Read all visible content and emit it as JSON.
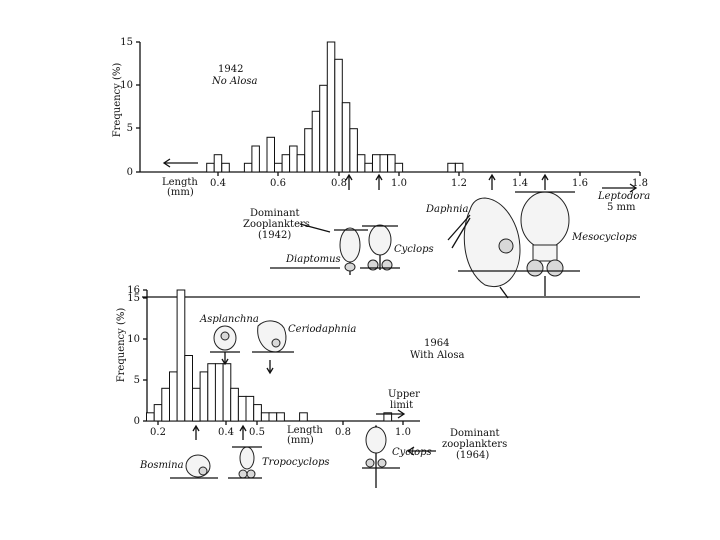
{
  "chart_data": [
    {
      "type": "bar",
      "year": "1942",
      "condition": "No Alosa",
      "ylabel": "Frequency (%)",
      "xlim": [
        0.1,
        1.75
      ],
      "ylim": [
        0,
        15
      ],
      "yticks": [
        "0",
        "5",
        "10",
        "15"
      ],
      "xticks": [
        "0.4",
        "0.6",
        "0.8",
        "1.0",
        "1.2",
        "1.4",
        "1.6",
        "1.8"
      ],
      "length_label": "Length",
      "length_unit": "(mm)",
      "leptodora_label": "Leptodora",
      "leptodora_size": "5 mm",
      "dominant_label": [
        "Dominant",
        "Zooplankters",
        "(1942)"
      ],
      "bin_width": 0.025,
      "bins": [
        {
          "x": 0.375,
          "y": 1
        },
        {
          "x": 0.4,
          "y": 2
        },
        {
          "x": 0.425,
          "y": 1
        },
        {
          "x": 0.5,
          "y": 1
        },
        {
          "x": 0.525,
          "y": 3
        },
        {
          "x": 0.575,
          "y": 4
        },
        {
          "x": 0.6,
          "y": 1
        },
        {
          "x": 0.625,
          "y": 2
        },
        {
          "x": 0.65,
          "y": 3
        },
        {
          "x": 0.675,
          "y": 2
        },
        {
          "x": 0.7,
          "y": 5
        },
        {
          "x": 0.725,
          "y": 7
        },
        {
          "x": 0.75,
          "y": 10
        },
        {
          "x": 0.775,
          "y": 15
        },
        {
          "x": 0.8,
          "y": 13
        },
        {
          "x": 0.825,
          "y": 8
        },
        {
          "x": 0.85,
          "y": 5
        },
        {
          "x": 0.875,
          "y": 2
        },
        {
          "x": 0.9,
          "y": 1
        },
        {
          "x": 0.925,
          "y": 2
        },
        {
          "x": 0.95,
          "y": 2
        },
        {
          "x": 0.975,
          "y": 2
        },
        {
          "x": 1.0,
          "y": 1
        },
        {
          "x": 1.175,
          "y": 1
        },
        {
          "x": 1.2,
          "y": 1
        }
      ],
      "organisms": [
        "Diaptomus",
        "Cyclops",
        "Daphnia",
        "Mesocyclops"
      ]
    },
    {
      "type": "bar",
      "year": "1964",
      "condition": "With Alosa",
      "ylabel": "Frequency (%)",
      "xlim": [
        0.1,
        1.0
      ],
      "ylim": [
        0,
        16
      ],
      "yticks": [
        "0",
        "5",
        "10",
        "15",
        "16"
      ],
      "xticks": [
        "0.2",
        "0.4",
        "0.5",
        "0.8",
        "1.0"
      ],
      "length_label": "Length",
      "length_unit": "(mm)",
      "upper_limit_label": [
        "Upper",
        "limit"
      ],
      "dominant_label": [
        "Dominant",
        "zooplankters",
        "(1964)"
      ],
      "bin_width": 0.025,
      "bins": [
        {
          "x": 0.175,
          "y": 1
        },
        {
          "x": 0.2,
          "y": 2
        },
        {
          "x": 0.225,
          "y": 4
        },
        {
          "x": 0.25,
          "y": 6
        },
        {
          "x": 0.275,
          "y": 16
        },
        {
          "x": 0.3,
          "y": 8
        },
        {
          "x": 0.325,
          "y": 4
        },
        {
          "x": 0.35,
          "y": 6
        },
        {
          "x": 0.375,
          "y": 7
        },
        {
          "x": 0.4,
          "y": 7
        },
        {
          "x": 0.425,
          "y": 7
        },
        {
          "x": 0.45,
          "y": 4
        },
        {
          "x": 0.475,
          "y": 3
        },
        {
          "x": 0.5,
          "y": 3
        },
        {
          "x": 0.525,
          "y": 2
        },
        {
          "x": 0.55,
          "y": 1
        },
        {
          "x": 0.575,
          "y": 1
        },
        {
          "x": 0.6,
          "y": 1
        },
        {
          "x": 0.675,
          "y": 1
        },
        {
          "x": 0.95,
          "y": 1
        }
      ],
      "organisms": [
        "Asplanchna",
        "Ceriodaphnia",
        "Bosmina",
        "Tropocyclops",
        "Cyclops"
      ]
    }
  ]
}
